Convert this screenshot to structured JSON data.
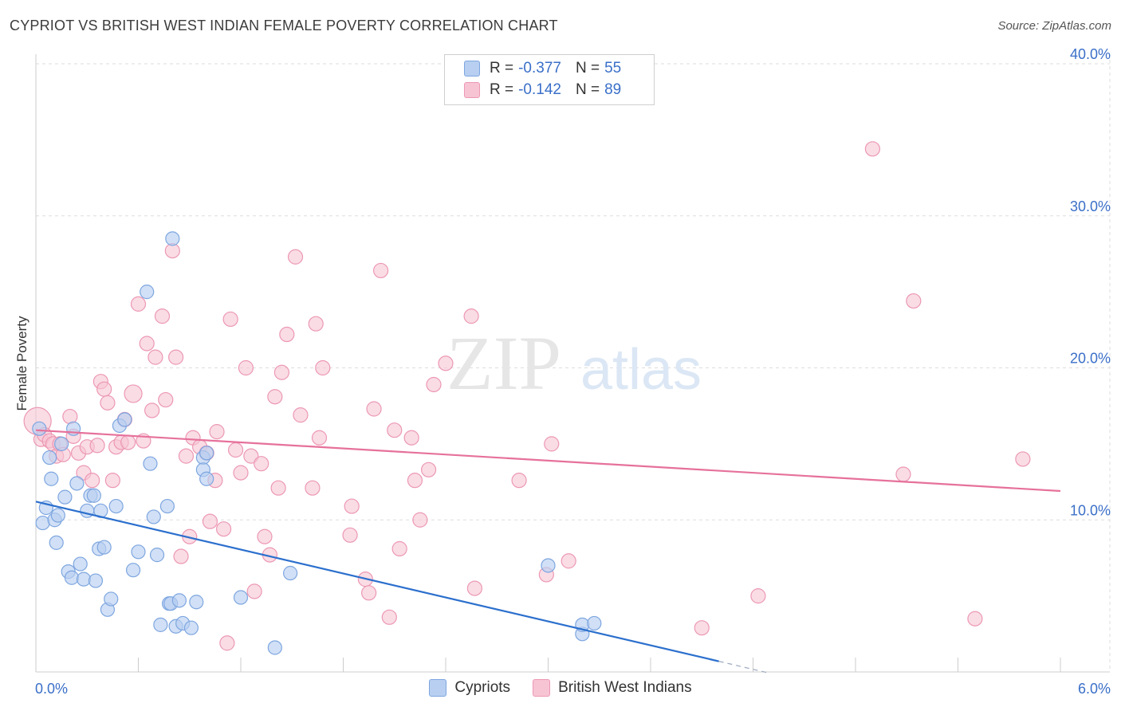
{
  "title": "CYPRIOT VS BRITISH WEST INDIAN FEMALE POVERTY CORRELATION CHART",
  "source": "Source: ZipAtlas.com",
  "watermark": {
    "zip": "ZIP",
    "atlas": "atlas"
  },
  "legend": {
    "rows": [
      {
        "r_label": "R =",
        "r_value": "-0.377",
        "n_label": "N =",
        "n_value": "55"
      },
      {
        "r_label": "R =",
        "r_value": "-0.142",
        "n_label": "N =",
        "n_value": "89"
      }
    ]
  },
  "colors": {
    "blue_fill": "#b8cff1",
    "blue_stroke": "#7ea6e0",
    "blue_line": "#2b6fcd",
    "pink_fill": "#f7c4d4",
    "pink_stroke": "#ec98b3",
    "pink_line": "#e6719b",
    "tick_text": "#3a6fc8",
    "grid": "#dddddd"
  },
  "chart_data": {
    "type": "scatter",
    "title": "CYPRIOT VS BRITISH WEST INDIAN FEMALE POVERTY CORRELATION CHART",
    "xlabel": "",
    "ylabel": "Female Poverty",
    "xlim": [
      0,
      6.0
    ],
    "ylim": [
      0,
      40.0
    ],
    "x_tick_labels": [
      "0.0%",
      "6.0%"
    ],
    "y_ticks": [
      10,
      20,
      30,
      40
    ],
    "y_tick_labels": [
      "10.0%",
      "20.0%",
      "30.0%",
      "40.0%"
    ],
    "grid": true,
    "legend_position": "top-center",
    "series": [
      {
        "name": "Cypriots",
        "r": -0.377,
        "n": 55,
        "trend": {
          "x0": 0.0,
          "y0": 11.2,
          "x1": 4.0,
          "y1": 0.7,
          "dash_to_x": 4.3
        },
        "points": [
          [
            0.02,
            16.0
          ],
          [
            0.04,
            9.8
          ],
          [
            0.06,
            10.8
          ],
          [
            0.08,
            14.1
          ],
          [
            0.09,
            12.7
          ],
          [
            0.11,
            10.0
          ],
          [
            0.12,
            8.5
          ],
          [
            0.13,
            10.3
          ],
          [
            0.15,
            15.0
          ],
          [
            0.17,
            11.5
          ],
          [
            0.19,
            6.6
          ],
          [
            0.21,
            6.2
          ],
          [
            0.22,
            16.0
          ],
          [
            0.24,
            12.4
          ],
          [
            0.26,
            7.1
          ],
          [
            0.28,
            6.1
          ],
          [
            0.3,
            10.6
          ],
          [
            0.32,
            11.6
          ],
          [
            0.34,
            11.6
          ],
          [
            0.35,
            6.0
          ],
          [
            0.37,
            8.1
          ],
          [
            0.38,
            10.6
          ],
          [
            0.4,
            8.2
          ],
          [
            0.42,
            4.1
          ],
          [
            0.44,
            4.8
          ],
          [
            0.47,
            10.9
          ],
          [
            0.49,
            16.2
          ],
          [
            0.52,
            16.6
          ],
          [
            0.57,
            6.7
          ],
          [
            0.6,
            7.9
          ],
          [
            0.65,
            25.0
          ],
          [
            0.67,
            13.7
          ],
          [
            0.69,
            10.2
          ],
          [
            0.71,
            7.7
          ],
          [
            0.73,
            3.1
          ],
          [
            0.77,
            10.9
          ],
          [
            0.78,
            4.5
          ],
          [
            0.79,
            4.5
          ],
          [
            0.8,
            28.5
          ],
          [
            0.82,
            3.0
          ],
          [
            0.84,
            4.7
          ],
          [
            0.86,
            3.2
          ],
          [
            0.91,
            2.9
          ],
          [
            0.94,
            4.6
          ],
          [
            0.98,
            14.1
          ],
          [
            0.98,
            13.3
          ],
          [
            1.0,
            12.7
          ],
          [
            1.0,
            14.4
          ],
          [
            1.2,
            4.9
          ],
          [
            1.4,
            1.6
          ],
          [
            1.49,
            6.5
          ],
          [
            3.0,
            7.0
          ],
          [
            3.2,
            2.5
          ],
          [
            3.2,
            3.1
          ],
          [
            3.27,
            3.2
          ]
        ]
      },
      {
        "name": "British West Indians",
        "r": -0.142,
        "n": 89,
        "trend": {
          "x0": 0.0,
          "y0": 15.9,
          "x1": 6.0,
          "y1": 11.9
        },
        "points": [
          [
            0.01,
            16.5
          ],
          [
            0.03,
            15.3
          ],
          [
            0.05,
            15.6
          ],
          [
            0.08,
            15.2
          ],
          [
            0.1,
            15.0
          ],
          [
            0.12,
            14.2
          ],
          [
            0.14,
            15.0
          ],
          [
            0.16,
            14.3
          ],
          [
            0.2,
            16.8
          ],
          [
            0.22,
            15.5
          ],
          [
            0.25,
            14.4
          ],
          [
            0.28,
            13.1
          ],
          [
            0.3,
            14.8
          ],
          [
            0.33,
            12.6
          ],
          [
            0.36,
            14.9
          ],
          [
            0.38,
            19.1
          ],
          [
            0.4,
            18.6
          ],
          [
            0.42,
            17.7
          ],
          [
            0.45,
            12.6
          ],
          [
            0.47,
            14.8
          ],
          [
            0.5,
            15.1
          ],
          [
            0.52,
            16.6
          ],
          [
            0.54,
            15.1
          ],
          [
            0.57,
            18.3
          ],
          [
            0.6,
            24.2
          ],
          [
            0.63,
            15.2
          ],
          [
            0.65,
            21.6
          ],
          [
            0.68,
            17.2
          ],
          [
            0.7,
            20.7
          ],
          [
            0.74,
            23.4
          ],
          [
            0.76,
            17.9
          ],
          [
            0.8,
            27.7
          ],
          [
            0.82,
            20.7
          ],
          [
            0.85,
            7.6
          ],
          [
            0.88,
            14.2
          ],
          [
            0.9,
            8.9
          ],
          [
            0.92,
            15.4
          ],
          [
            0.96,
            14.8
          ],
          [
            1.0,
            14.4
          ],
          [
            1.02,
            9.9
          ],
          [
            1.05,
            12.6
          ],
          [
            1.06,
            15.8
          ],
          [
            1.1,
            9.4
          ],
          [
            1.12,
            1.9
          ],
          [
            1.14,
            23.2
          ],
          [
            1.17,
            14.6
          ],
          [
            1.2,
            13.1
          ],
          [
            1.23,
            20.0
          ],
          [
            1.26,
            14.2
          ],
          [
            1.28,
            5.3
          ],
          [
            1.32,
            13.7
          ],
          [
            1.34,
            8.9
          ],
          [
            1.37,
            7.7
          ],
          [
            1.4,
            18.1
          ],
          [
            1.42,
            12.1
          ],
          [
            1.44,
            19.7
          ],
          [
            1.47,
            22.2
          ],
          [
            1.52,
            27.3
          ],
          [
            1.55,
            16.9
          ],
          [
            1.62,
            12.1
          ],
          [
            1.64,
            22.9
          ],
          [
            1.66,
            15.4
          ],
          [
            1.68,
            20.0
          ],
          [
            1.85,
            10.9
          ],
          [
            1.84,
            9.0
          ],
          [
            1.93,
            6.1
          ],
          [
            1.95,
            5.2
          ],
          [
            1.98,
            17.3
          ],
          [
            2.02,
            26.4
          ],
          [
            2.07,
            3.6
          ],
          [
            2.1,
            15.9
          ],
          [
            2.13,
            8.1
          ],
          [
            2.2,
            15.4
          ],
          [
            2.22,
            12.6
          ],
          [
            2.25,
            10.0
          ],
          [
            2.3,
            13.3
          ],
          [
            2.33,
            18.9
          ],
          [
            2.4,
            20.3
          ],
          [
            2.55,
            23.4
          ],
          [
            2.57,
            5.5
          ],
          [
            2.83,
            12.6
          ],
          [
            2.99,
            6.4
          ],
          [
            3.02,
            15.0
          ],
          [
            3.12,
            7.3
          ],
          [
            3.9,
            2.9
          ],
          [
            4.23,
            5.0
          ],
          [
            4.9,
            34.4
          ],
          [
            5.08,
            13.0
          ],
          [
            5.14,
            24.4
          ],
          [
            5.5,
            3.5
          ],
          [
            5.78,
            14.0
          ]
        ]
      }
    ]
  }
}
